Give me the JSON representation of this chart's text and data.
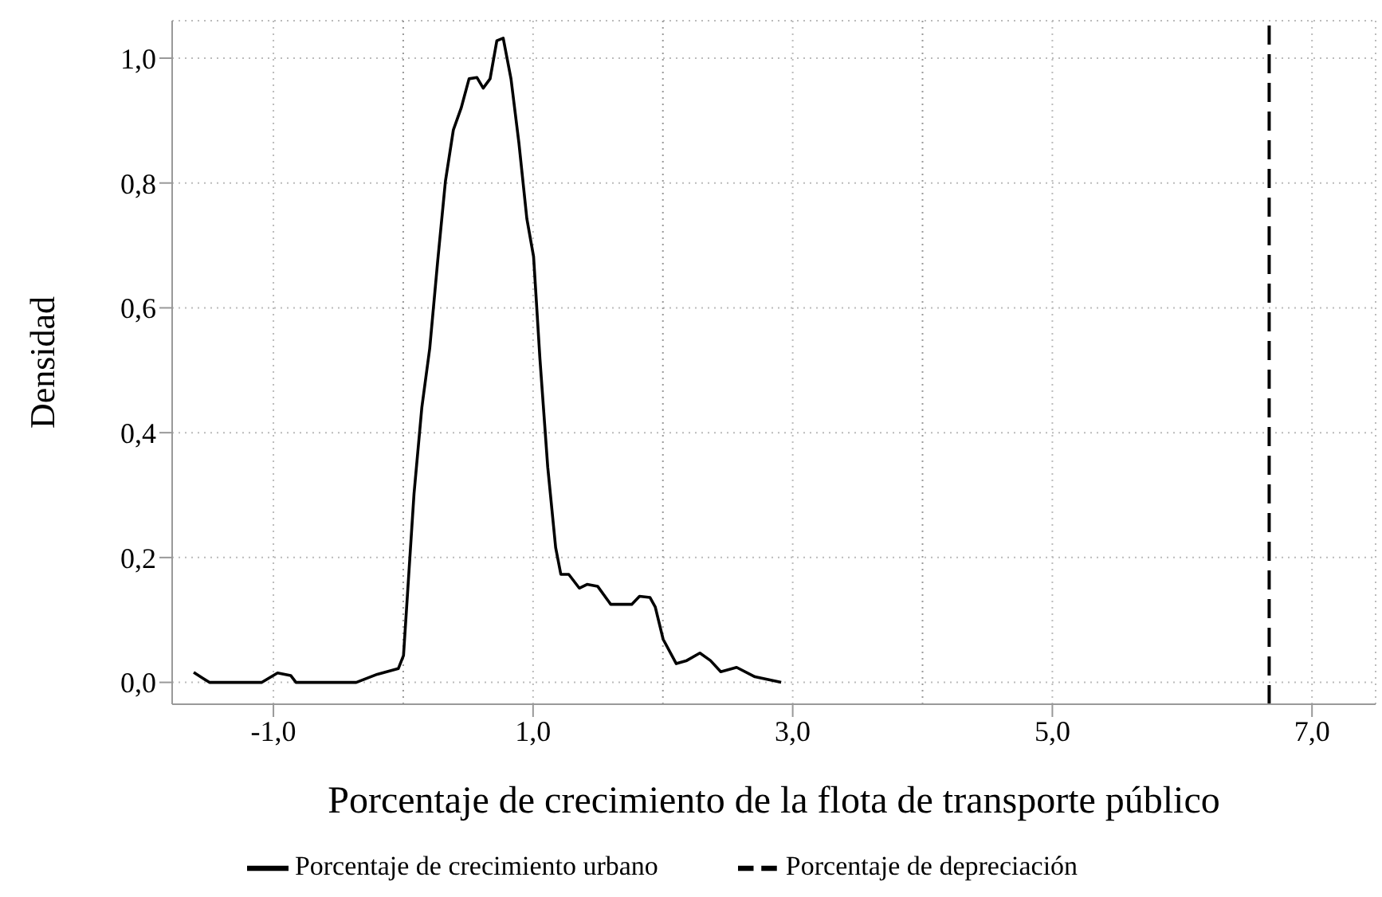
{
  "chart_data": {
    "type": "line",
    "xlabel": "Porcentaje de crecimiento de la flota de transporte público",
    "ylabel": "Densidad",
    "xlim": [
      -1.78,
      7.49
    ],
    "ylim": [
      -0.035,
      1.06
    ],
    "xticks": [
      {
        "value": -1,
        "label": "-1,0"
      },
      {
        "value": 1,
        "label": "1,0"
      },
      {
        "value": 3,
        "label": "3,0"
      },
      {
        "value": 5,
        "label": "5,0"
      },
      {
        "value": 7,
        "label": "7,0"
      }
    ],
    "yticks": [
      {
        "value": 0,
        "label": "0,0"
      },
      {
        "value": 0.2,
        "label": "0,2"
      },
      {
        "value": 0.4,
        "label": "0,4"
      },
      {
        "value": 0.6,
        "label": "0,6"
      },
      {
        "value": 0.8,
        "label": "0,8"
      },
      {
        "value": 1,
        "label": "1,0"
      }
    ],
    "grid": true,
    "legend": "bottom",
    "marker": "none",
    "ref_lines": [
      {
        "axis": "x",
        "value": 0,
        "color": "#999999",
        "line_style": "dotted"
      },
      {
        "axis": "x",
        "value": 2,
        "color": "#999999",
        "line_style": "dotted"
      },
      {
        "axis": "x",
        "value": 4,
        "color": "#999999",
        "line_style": "dotted"
      }
    ],
    "series": [
      {
        "name": "Porcentaje de crecimiento urbano",
        "color": "#000000",
        "line_style": "solid",
        "x": [
          -1.614,
          -1.493,
          -1.089,
          -0.968,
          -0.867,
          -0.826,
          -0.362,
          -0.2,
          -0.038,
          0.002,
          0.083,
          0.143,
          0.204,
          0.265,
          0.325,
          0.386,
          0.446,
          0.507,
          0.568,
          0.616,
          0.669,
          0.721,
          0.77,
          0.83,
          0.891,
          0.952,
          1.004,
          1.053,
          1.113,
          1.174,
          1.214,
          1.275,
          1.356,
          1.416,
          1.497,
          1.598,
          1.76,
          1.82,
          1.901,
          1.941,
          2.002,
          2.103,
          2.184,
          2.285,
          2.366,
          2.446,
          2.568,
          2.709,
          2.911
        ],
        "values": [
          0.016,
          0,
          0,
          0.015,
          0.011,
          0,
          0,
          0.013,
          0.022,
          0.043,
          0.302,
          0.44,
          0.535,
          0.674,
          0.803,
          0.885,
          0.92,
          0.967,
          0.969,
          0.952,
          0.967,
          1.028,
          1.032,
          0.967,
          0.864,
          0.743,
          0.682,
          0.518,
          0.345,
          0.216,
          0.173,
          0.173,
          0.151,
          0.157,
          0.154,
          0.125,
          0.125,
          0.138,
          0.136,
          0.121,
          0.069,
          0.03,
          0.035,
          0.047,
          0.035,
          0.017,
          0.024,
          0.009,
          0
        ]
      },
      {
        "name": "Porcentaje de depreciación",
        "color": "#000000",
        "line_style": "dashed",
        "x": [
          6.67,
          6.67
        ],
        "values": [
          -0.035,
          1.06
        ]
      }
    ]
  }
}
